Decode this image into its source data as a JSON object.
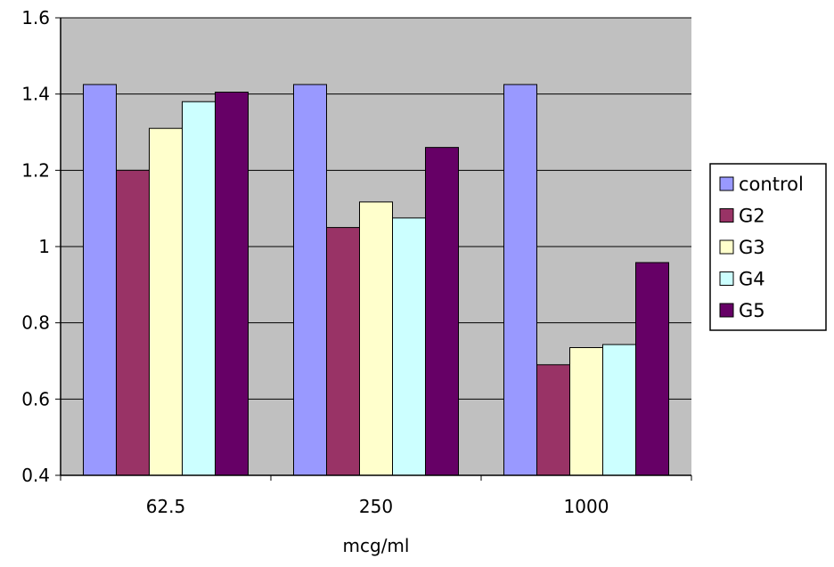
{
  "chart_data": {
    "type": "bar",
    "title": "",
    "xlabel": "mcg/ml",
    "ylabel": "",
    "categories": [
      "62.5",
      "250",
      "1000"
    ],
    "series": [
      {
        "name": "control",
        "values": [
          1.425,
          1.425,
          1.425
        ],
        "color": "#9999ff"
      },
      {
        "name": "G2",
        "values": [
          1.2,
          1.05,
          0.69
        ],
        "color": "#993366"
      },
      {
        "name": "G3",
        "values": [
          1.31,
          1.117,
          0.735
        ],
        "color": "#ffffcc"
      },
      {
        "name": "G4",
        "values": [
          1.38,
          1.075,
          0.743
        ],
        "color": "#ccffff"
      },
      {
        "name": "G5",
        "values": [
          1.405,
          1.26,
          0.958
        ],
        "color": "#660066"
      }
    ],
    "yticks": [
      "0.4",
      "0.6",
      "0.8",
      "1",
      "1.2",
      "1.4",
      "1.6"
    ],
    "ylim": [
      0.4,
      1.6
    ],
    "grid": true,
    "legend_position": "right",
    "plot_background": "#c0c0c0"
  }
}
